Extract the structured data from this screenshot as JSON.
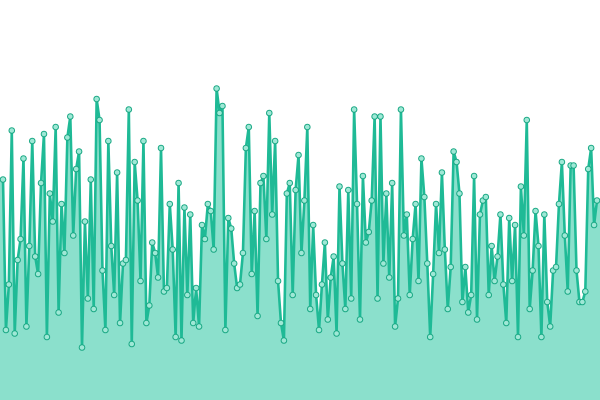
{
  "colors": {
    "line": "#1fba96",
    "area_fill": "#8be0cc",
    "marker_fill": "#9fe8d6",
    "marker_stroke": "#1aa884"
  },
  "chart_data": {
    "type": "area",
    "title": "",
    "xlabel": "",
    "ylabel": "",
    "grid": false,
    "legend": "none",
    "markers": true,
    "xlim": [
      0,
      199
    ],
    "ylim": [
      0,
      100
    ],
    "series": [
      {
        "values": [
          55,
          12,
          25,
          69,
          11,
          32,
          38,
          61,
          13,
          36,
          66,
          33,
          28,
          54,
          68,
          10,
          51,
          43,
          70,
          17,
          48,
          34,
          67,
          73,
          39,
          58,
          63,
          7,
          43,
          21,
          55,
          18,
          78,
          72,
          29,
          12,
          66,
          36,
          22,
          57,
          14,
          31,
          32,
          75,
          8,
          60,
          49,
          26,
          66,
          14,
          19,
          37,
          34,
          27,
          64,
          23,
          24,
          48,
          35,
          10,
          54,
          9,
          47,
          22,
          45,
          14,
          24,
          13,
          42,
          38,
          48,
          46,
          35,
          81,
          74,
          76,
          12,
          44,
          41,
          31,
          24,
          25,
          34,
          64,
          70,
          28,
          46,
          16,
          54,
          56,
          38,
          74,
          45,
          66,
          26,
          14,
          9,
          51,
          54,
          22,
          52,
          62,
          34,
          49,
          70,
          18,
          42,
          22,
          12,
          25,
          37,
          15,
          27,
          33,
          11,
          53,
          31,
          18,
          52,
          21,
          75,
          48,
          15,
          56,
          37,
          40,
          49,
          73,
          21,
          73,
          31,
          51,
          27,
          54,
          13,
          21,
          75,
          39,
          45,
          22,
          38,
          48,
          26,
          61,
          50,
          31,
          10,
          28,
          48,
          34,
          57,
          35,
          18,
          30,
          63,
          60,
          51,
          20,
          30,
          17,
          22,
          56,
          15,
          45,
          49,
          50,
          22,
          36,
          26,
          33,
          45,
          25,
          14,
          44,
          26,
          42,
          10,
          53,
          39,
          72,
          18,
          29,
          46,
          36,
          10,
          45,
          20,
          13,
          29,
          30,
          48,
          60,
          39,
          23,
          59,
          59,
          29,
          20,
          20,
          23,
          58,
          64,
          42,
          49
        ]
      }
    ]
  }
}
